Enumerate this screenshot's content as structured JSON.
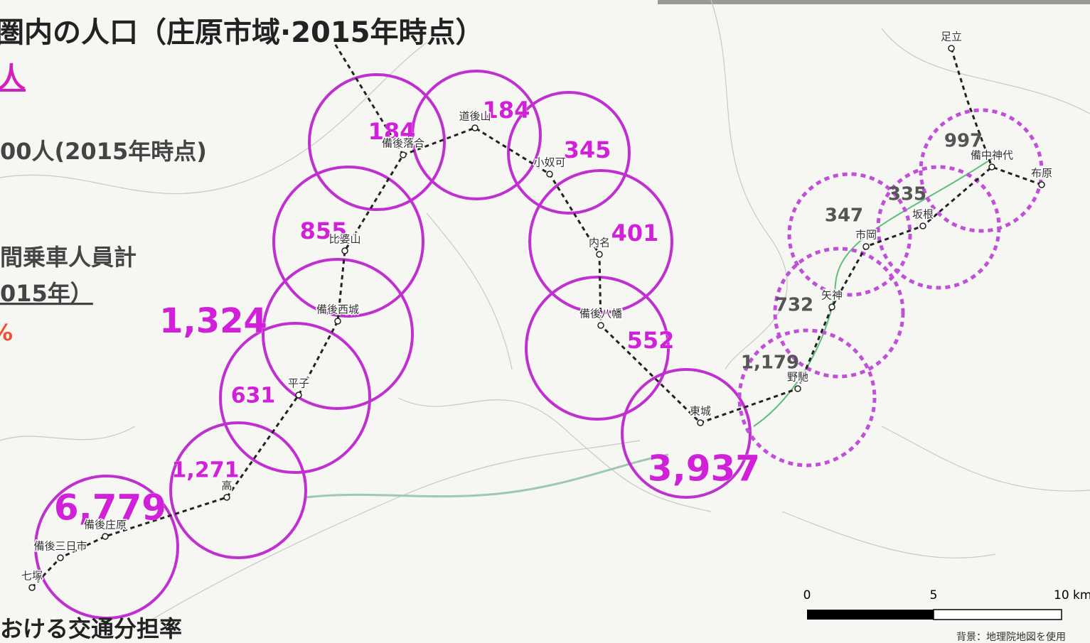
{
  "header": {
    "title": "圏内の人口（庄原市域·2015年時点）",
    "total_unit": "人",
    "population_line": "00人(2015年時点)",
    "ridership_line1": "間乗車人員計",
    "ridership_line2": "015年）",
    "share_value": "%",
    "mode_share": "おける交通分担率"
  },
  "zones": [
    {
      "population": "184"
    },
    {
      "population": "184"
    },
    {
      "population": "345"
    },
    {
      "population": "855"
    },
    {
      "population": "401"
    },
    {
      "population": "1,324"
    },
    {
      "population": "552"
    },
    {
      "population": "631"
    },
    {
      "population": "1,271"
    },
    {
      "population": "6,779"
    },
    {
      "population": "3,937"
    },
    {
      "population": "997"
    },
    {
      "population": "335"
    },
    {
      "population": "347"
    },
    {
      "population": "732"
    },
    {
      "population": "1,179"
    }
  ],
  "stations": [
    {
      "name": "備後落合"
    },
    {
      "name": "道後山"
    },
    {
      "name": "小奴可"
    },
    {
      "name": "比婆山"
    },
    {
      "name": "内名"
    },
    {
      "name": "備後西城"
    },
    {
      "name": "備後八幡"
    },
    {
      "name": "平子"
    },
    {
      "name": "東城"
    },
    {
      "name": "高"
    },
    {
      "name": "備後庄原"
    },
    {
      "name": "備後三日市"
    },
    {
      "name": "七塚"
    },
    {
      "name": "足立"
    },
    {
      "name": "備中神代"
    },
    {
      "name": "布原"
    },
    {
      "name": "坂根"
    },
    {
      "name": "市岡"
    },
    {
      "name": "矢神"
    },
    {
      "name": "野馳"
    }
  ],
  "scale": {
    "ticks": [
      "0",
      "5",
      "10 km"
    ]
  },
  "credit": "背景：地理院地図を使用"
}
